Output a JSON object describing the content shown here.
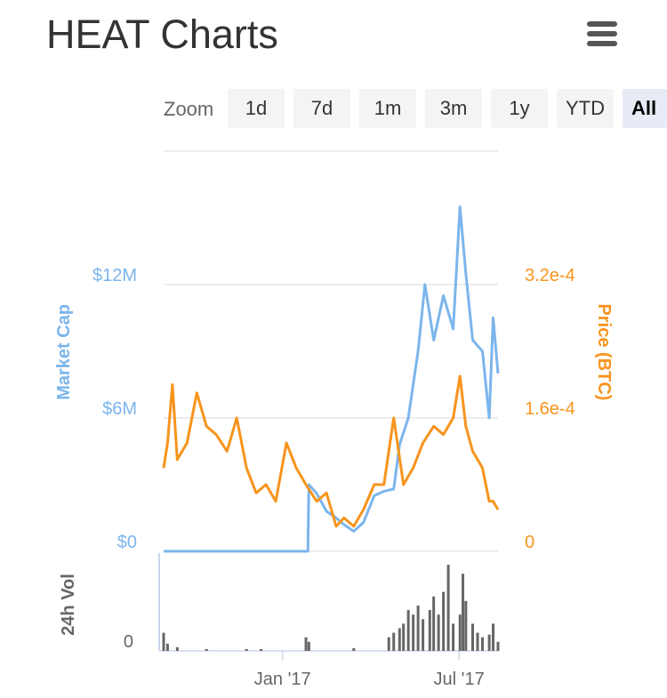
{
  "header": {
    "title": "HEAT Charts",
    "menu_icon": "hamburger-menu-icon"
  },
  "zoom": {
    "label": "Zoom",
    "buttons": [
      "1d",
      "7d",
      "1m",
      "3m",
      "1y",
      "YTD",
      "All"
    ],
    "active": "All"
  },
  "colors": {
    "market_cap": "#7cb5ec",
    "price": "#f7941d",
    "volume": "#666666",
    "grid": "#e6e6e6"
  },
  "chart_data": {
    "type": "line",
    "x_axis": {
      "type": "datetime",
      "range": [
        "2016-09-01",
        "2017-08-10"
      ],
      "tick_labels": [
        "Jan '17",
        "Jul '17"
      ],
      "tick_dates": [
        "2017-01-01",
        "2017-07-01"
      ]
    },
    "y_axes": [
      {
        "title": "Market Cap",
        "tick_labels": [
          "$0",
          "$6M",
          "$12M"
        ],
        "ticks": [
          0,
          6000000,
          12000000
        ],
        "range": [
          0,
          18000000
        ],
        "position": "left"
      },
      {
        "title": "Price (BTC)",
        "tick_labels": [
          "0",
          "1.6e-4",
          "3.2e-4"
        ],
        "ticks": [
          0,
          0.00016,
          0.00032
        ],
        "range": [
          0,
          0.00048
        ],
        "position": "right"
      },
      {
        "title": "24h Vol",
        "tick_labels": [
          "0"
        ],
        "ticks": [
          0
        ],
        "position": "left",
        "pane": "bottom"
      }
    ],
    "series": [
      {
        "name": "Market Cap",
        "y_axis": 0,
        "points": [
          [
            "2016-09-01",
            0
          ],
          [
            "2016-12-10",
            0
          ],
          [
            "2017-01-27",
            0
          ],
          [
            "2017-01-28",
            3000000
          ],
          [
            "2017-02-05",
            2600000
          ],
          [
            "2017-02-15",
            1800000
          ],
          [
            "2017-02-25",
            1500000
          ],
          [
            "2017-03-05",
            1200000
          ],
          [
            "2017-03-15",
            900000
          ],
          [
            "2017-03-25",
            1300000
          ],
          [
            "2017-04-05",
            2500000
          ],
          [
            "2017-04-15",
            2700000
          ],
          [
            "2017-04-25",
            2800000
          ],
          [
            "2017-05-01",
            4800000
          ],
          [
            "2017-05-10",
            6000000
          ],
          [
            "2017-05-20",
            9000000
          ],
          [
            "2017-05-27",
            12000000
          ],
          [
            "2017-06-05",
            9500000
          ],
          [
            "2017-06-15",
            11500000
          ],
          [
            "2017-06-25",
            10000000
          ],
          [
            "2017-07-02",
            15500000
          ],
          [
            "2017-07-08",
            12500000
          ],
          [
            "2017-07-15",
            9500000
          ],
          [
            "2017-07-25",
            9000000
          ],
          [
            "2017-08-01",
            6000000
          ],
          [
            "2017-08-05",
            10500000
          ],
          [
            "2017-08-10",
            8000000
          ]
        ]
      },
      {
        "name": "Price (BTC)",
        "y_axis": 1,
        "points": [
          [
            "2016-09-01",
            0.0001
          ],
          [
            "2016-09-05",
            0.00013
          ],
          [
            "2016-09-10",
            0.0002
          ],
          [
            "2016-09-15",
            0.00011
          ],
          [
            "2016-09-25",
            0.00013
          ],
          [
            "2016-10-05",
            0.00019
          ],
          [
            "2016-10-15",
            0.00015
          ],
          [
            "2016-10-25",
            0.00014
          ],
          [
            "2016-11-05",
            0.00012
          ],
          [
            "2016-11-15",
            0.00016
          ],
          [
            "2016-11-25",
            0.0001
          ],
          [
            "2016-12-05",
            7e-05
          ],
          [
            "2016-12-15",
            8e-05
          ],
          [
            "2016-12-25",
            6e-05
          ],
          [
            "2017-01-05",
            0.00013
          ],
          [
            "2017-01-15",
            0.0001
          ],
          [
            "2017-01-25",
            8e-05
          ],
          [
            "2017-02-05",
            6e-05
          ],
          [
            "2017-02-15",
            7e-05
          ],
          [
            "2017-02-25",
            3e-05
          ],
          [
            "2017-03-05",
            4e-05
          ],
          [
            "2017-03-15",
            3e-05
          ],
          [
            "2017-03-25",
            5e-05
          ],
          [
            "2017-04-05",
            8e-05
          ],
          [
            "2017-04-15",
            8e-05
          ],
          [
            "2017-04-25",
            0.00016
          ],
          [
            "2017-05-05",
            8e-05
          ],
          [
            "2017-05-15",
            0.0001
          ],
          [
            "2017-05-25",
            0.00013
          ],
          [
            "2017-06-05",
            0.00015
          ],
          [
            "2017-06-15",
            0.00014
          ],
          [
            "2017-06-25",
            0.00016
          ],
          [
            "2017-07-02",
            0.00021
          ],
          [
            "2017-07-08",
            0.00015
          ],
          [
            "2017-07-15",
            0.00012
          ],
          [
            "2017-07-25",
            0.0001
          ],
          [
            "2017-08-01",
            6e-05
          ],
          [
            "2017-08-05",
            6e-05
          ],
          [
            "2017-08-10",
            5e-05
          ]
        ]
      },
      {
        "name": "24h Vol",
        "type": "column",
        "pane": "bottom",
        "relative_scale": true,
        "points": [
          [
            "2016-09-01",
            0.2
          ],
          [
            "2016-09-05",
            0.08
          ],
          [
            "2016-09-15",
            0.04
          ],
          [
            "2016-10-15",
            0.02
          ],
          [
            "2016-11-25",
            0.02
          ],
          [
            "2016-12-10",
            0.02
          ],
          [
            "2017-01-25",
            0.15
          ],
          [
            "2017-01-28",
            0.1
          ],
          [
            "2017-03-15",
            0.03
          ],
          [
            "2017-04-20",
            0.15
          ],
          [
            "2017-04-25",
            0.2
          ],
          [
            "2017-05-01",
            0.25
          ],
          [
            "2017-05-05",
            0.3
          ],
          [
            "2017-05-10",
            0.45
          ],
          [
            "2017-05-15",
            0.4
          ],
          [
            "2017-05-20",
            0.5
          ],
          [
            "2017-05-25",
            0.35
          ],
          [
            "2017-06-01",
            0.45
          ],
          [
            "2017-06-05",
            0.6
          ],
          [
            "2017-06-10",
            0.4
          ],
          [
            "2017-06-15",
            0.65
          ],
          [
            "2017-06-20",
            0.95
          ],
          [
            "2017-06-25",
            0.3
          ],
          [
            "2017-07-02",
            0.4
          ],
          [
            "2017-07-05",
            0.85
          ],
          [
            "2017-07-08",
            0.55
          ],
          [
            "2017-07-15",
            0.3
          ],
          [
            "2017-07-20",
            0.2
          ],
          [
            "2017-07-25",
            0.15
          ],
          [
            "2017-08-01",
            0.18
          ],
          [
            "2017-08-05",
            0.3
          ],
          [
            "2017-08-10",
            0.1
          ]
        ]
      }
    ],
    "grid": true,
    "legend": "none"
  }
}
